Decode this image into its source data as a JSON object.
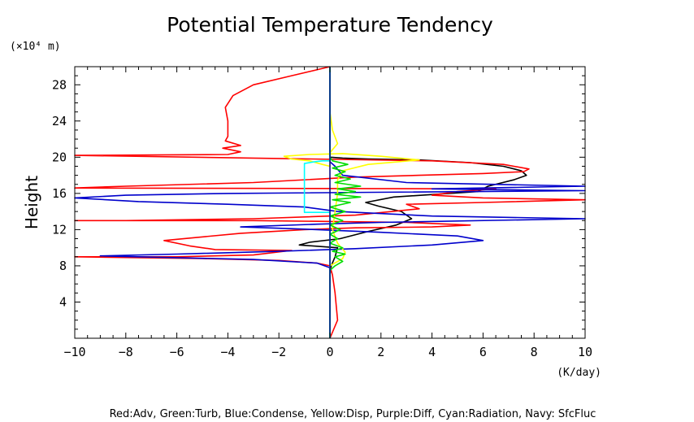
{
  "chart_data": {
    "type": "line",
    "title": "Potential Temperature Tendency",
    "xlabel": "(K/day)",
    "ylabel": "Height",
    "y_unit_label": "(×10⁴ m)",
    "xlim": [
      -10,
      10
    ],
    "ylim": [
      0,
      30
    ],
    "x_ticks": [
      -10,
      -8,
      -6,
      -4,
      -2,
      0,
      2,
      4,
      6,
      8,
      10
    ],
    "x_tick_labels": [
      "−10",
      "−8",
      "−6",
      "−4",
      "−2",
      "0",
      "2",
      "4",
      "6",
      "8",
      "10"
    ],
    "y_ticks": [
      4,
      8,
      12,
      16,
      20,
      24,
      28
    ],
    "y_tick_labels": [
      "4",
      "8",
      "12",
      "16",
      "20",
      "24",
      "28"
    ],
    "grid": false,
    "legend_text": "Red:Adv, Green:Turb, Blue:Condense, Yellow:Disp, Purple:Diff, Cyan:Radiation, Navy: SfcFluc",
    "series": [
      {
        "key": "black",
        "color": "#000000",
        "points": [
          [
            0,
            0
          ],
          [
            0,
            7
          ],
          [
            0.05,
            8
          ],
          [
            0.2,
            9
          ],
          [
            0.3,
            10
          ],
          [
            -1.2,
            10.3
          ],
          [
            -0.8,
            10.6
          ],
          [
            0.4,
            11
          ],
          [
            1.5,
            11.8
          ],
          [
            2.6,
            12.5
          ],
          [
            3.2,
            13.2
          ],
          [
            2.8,
            14
          ],
          [
            1.9,
            14.6
          ],
          [
            1.4,
            15
          ],
          [
            2.5,
            15.6
          ],
          [
            5.8,
            16.2
          ],
          [
            6.2,
            16.8
          ],
          [
            7.2,
            17.5
          ],
          [
            7.7,
            18
          ],
          [
            7.5,
            18.5
          ],
          [
            6.8,
            19
          ],
          [
            5.5,
            19.4
          ],
          [
            3.5,
            19.7
          ],
          [
            1.5,
            19.8
          ],
          [
            0.5,
            19.9
          ],
          [
            0,
            20
          ],
          [
            0,
            30
          ]
        ]
      },
      {
        "key": "red",
        "color": "#ff0000",
        "points": [
          [
            0,
            0
          ],
          [
            0.3,
            2
          ],
          [
            0.2,
            5
          ],
          [
            0.1,
            7
          ],
          [
            0,
            8
          ],
          [
            -0.5,
            8.3
          ],
          [
            -2,
            8.6
          ],
          [
            -5,
            8.8
          ],
          [
            -10,
            9
          ],
          [
            -6,
            9
          ],
          [
            -3,
            9.2
          ],
          [
            -1.5,
            9.7
          ],
          [
            -4.5,
            9.8
          ],
          [
            -5.5,
            10.2
          ],
          [
            -6.5,
            10.8
          ],
          [
            -3.5,
            11.6
          ],
          [
            -1,
            12
          ],
          [
            1,
            12.2
          ],
          [
            4,
            12.3
          ],
          [
            5.5,
            12.5
          ],
          [
            3,
            12.8
          ],
          [
            -3,
            13
          ],
          [
            -10,
            13
          ],
          [
            -8,
            13
          ],
          [
            -3,
            13.2
          ],
          [
            1,
            13.6
          ],
          [
            3.5,
            14.3
          ],
          [
            3,
            14.8
          ],
          [
            6,
            15
          ],
          [
            10,
            15.3
          ],
          [
            6,
            15.5
          ],
          [
            4,
            15.8
          ],
          [
            5,
            16.2
          ],
          [
            6.5,
            16.5
          ],
          [
            -10,
            16.6
          ],
          [
            -8,
            16.8
          ],
          [
            -3,
            17.2
          ],
          [
            1,
            17.8
          ],
          [
            3.5,
            18
          ],
          [
            6,
            18.2
          ],
          [
            7.6,
            18.4
          ],
          [
            7.8,
            18.7
          ],
          [
            6.8,
            19.2
          ],
          [
            4,
            19.6
          ],
          [
            -10,
            20.2
          ],
          [
            -4,
            20.3
          ],
          [
            -3.5,
            20.6
          ],
          [
            -4.2,
            21
          ],
          [
            -3.5,
            21.3
          ],
          [
            -4.1,
            21.8
          ],
          [
            -4,
            22.3
          ],
          [
            -4,
            24
          ],
          [
            -4.1,
            25.5
          ],
          [
            -3.8,
            26.8
          ],
          [
            -3,
            28
          ],
          [
            -1.5,
            29
          ],
          [
            0,
            30
          ]
        ]
      },
      {
        "key": "blue",
        "color": "#0000cc",
        "points": [
          [
            0,
            0
          ],
          [
            0,
            7.8
          ],
          [
            -0.5,
            8.3
          ],
          [
            -3,
            8.7
          ],
          [
            -9,
            9.1
          ],
          [
            -6,
            9.3
          ],
          [
            -2,
            9.6
          ],
          [
            1,
            9.9
          ],
          [
            4,
            10.3
          ],
          [
            6,
            10.8
          ],
          [
            5,
            11.3
          ],
          [
            2,
            11.7
          ],
          [
            -0.5,
            12
          ],
          [
            -3.5,
            12.3
          ],
          [
            -0.5,
            12.6
          ],
          [
            2,
            12.8
          ],
          [
            10,
            13.2
          ],
          [
            4,
            13.5
          ],
          [
            0.3,
            14
          ],
          [
            -1,
            14.5
          ],
          [
            -4,
            14.8
          ],
          [
            -7.5,
            15.1
          ],
          [
            -10,
            15.5
          ],
          [
            -8,
            15.8
          ],
          [
            -4,
            16
          ],
          [
            10,
            16.3
          ],
          [
            4,
            16.5
          ],
          [
            10,
            16.8
          ],
          [
            3,
            17.2
          ],
          [
            0.5,
            18
          ],
          [
            0.2,
            19
          ],
          [
            0,
            19.5
          ],
          [
            0,
            30
          ]
        ]
      },
      {
        "key": "yellow",
        "color": "#ffff00",
        "points": [
          [
            0,
            0
          ],
          [
            0,
            8
          ],
          [
            0.5,
            8.8
          ],
          [
            0.6,
            9.5
          ],
          [
            0.3,
            10.5
          ],
          [
            0.1,
            12
          ],
          [
            0.2,
            14
          ],
          [
            0.3,
            16
          ],
          [
            0.3,
            17.5
          ],
          [
            0.5,
            18.5
          ],
          [
            1.5,
            19.2
          ],
          [
            3.5,
            19.7
          ],
          [
            2,
            20.1
          ],
          [
            0.5,
            20.4
          ],
          [
            -0.8,
            20.3
          ],
          [
            -1.8,
            20.1
          ],
          [
            -1.5,
            19.8
          ],
          [
            -0.8,
            19.6
          ],
          [
            -0.3,
            19.2
          ],
          [
            0,
            19
          ],
          [
            0,
            20.5
          ],
          [
            0.3,
            21.5
          ],
          [
            0.1,
            23
          ],
          [
            0,
            25
          ],
          [
            0,
            30
          ]
        ]
      },
      {
        "key": "green",
        "color": "#00dd00",
        "points": [
          [
            0,
            0
          ],
          [
            0,
            7.5
          ],
          [
            0.2,
            8
          ],
          [
            0.5,
            8.5
          ],
          [
            0.2,
            9
          ],
          [
            0.6,
            9.3
          ],
          [
            0.1,
            9.6
          ],
          [
            0.5,
            10
          ],
          [
            0,
            10.5
          ],
          [
            0.3,
            11
          ],
          [
            0,
            11.5
          ],
          [
            0.4,
            12
          ],
          [
            0,
            12.5
          ],
          [
            0.5,
            13
          ],
          [
            0,
            13.5
          ],
          [
            0.6,
            14
          ],
          [
            0,
            14.5
          ],
          [
            0.8,
            15
          ],
          [
            0.1,
            15.3
          ],
          [
            1.2,
            15.6
          ],
          [
            0.2,
            15.9
          ],
          [
            1,
            16.2
          ],
          [
            0.3,
            16.5
          ],
          [
            1.2,
            16.8
          ],
          [
            0.2,
            17.2
          ],
          [
            0.8,
            17.6
          ],
          [
            0.2,
            18
          ],
          [
            0.6,
            18.4
          ],
          [
            0.1,
            18.8
          ],
          [
            0.7,
            19.2
          ],
          [
            0.1,
            19.6
          ],
          [
            0,
            20
          ],
          [
            0,
            30
          ]
        ]
      },
      {
        "key": "cyan",
        "color": "#00ffff",
        "points": [
          [
            0,
            0
          ],
          [
            0,
            13.9
          ],
          [
            -1,
            13.9
          ],
          [
            -1,
            19.3
          ],
          [
            -0.6,
            19.5
          ],
          [
            -0.3,
            19.6
          ],
          [
            0,
            19.6
          ],
          [
            0,
            30
          ]
        ]
      },
      {
        "key": "navy",
        "color": "#000080",
        "points": [
          [
            0,
            0
          ],
          [
            0,
            30
          ]
        ]
      }
    ]
  }
}
